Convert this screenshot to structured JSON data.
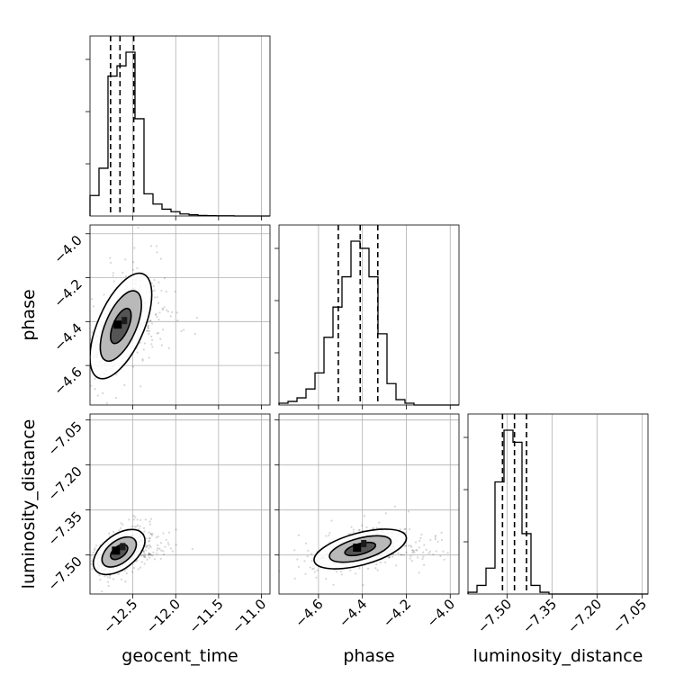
{
  "chart_data": {
    "type": "corner",
    "parameters": [
      "geocent_time",
      "phase",
      "luminosity_distance"
    ],
    "axis_labels": {
      "x": [
        "geocent_time",
        "phase",
        "luminosity_distance"
      ],
      "y": [
        "phase",
        "luminosity_distance"
      ]
    },
    "grid": true,
    "ranges": {
      "geocent_time": [
        -13.0,
        -10.9
      ],
      "phase": [
        -4.78,
        -3.96
      ],
      "luminosity_distance": [
        -7.63,
        -7.03
      ]
    },
    "ticks": {
      "geocent_time": [
        -12.5,
        -12.0,
        -11.5,
        -11.0
      ],
      "phase": [
        -4.6,
        -4.4,
        -4.2,
        -4.0
      ],
      "luminosity_distance": [
        -7.5,
        -7.35,
        -7.2,
        -7.05
      ]
    },
    "tick_labels": {
      "geocent_time": [
        "−12.5",
        "−12.0",
        "−11.5",
        "−11.0"
      ],
      "phase": [
        "−4.6",
        "−4.4",
        "−4.2",
        "−4.0"
      ],
      "luminosity_distance": [
        "−7.50",
        "−7.35",
        "−7.20",
        "−7.05"
      ]
    },
    "quantiles": {
      "geocent_time": [
        -12.76,
        -12.65,
        -12.49
      ],
      "phase": [
        -4.51,
        -4.41,
        -4.33
      ],
      "luminosity_distance": [
        -7.515,
        -7.475,
        -7.435
      ]
    },
    "histograms": {
      "geocent_time": {
        "edges": [
          -13.0,
          -12.895,
          -12.79,
          -12.685,
          -12.58,
          -12.475,
          -12.37,
          -12.265,
          -12.16,
          -12.055,
          -11.95,
          -11.845,
          -11.74,
          -11.635,
          -11.53,
          -11.425,
          -11.32,
          -11.215,
          -11.11,
          -11.005,
          -10.9
        ],
        "counts": [
          0.12,
          0.28,
          0.82,
          0.88,
          0.96,
          0.57,
          0.13,
          0.07,
          0.04,
          0.025,
          0.012,
          0.007,
          0.003,
          0.002,
          0.001,
          0.001,
          0.0,
          0.0,
          0.0,
          0.0
        ]
      },
      "phase": {
        "edges": [
          -4.78,
          -4.739,
          -4.698,
          -4.657,
          -4.616,
          -4.575,
          -4.534,
          -4.493,
          -4.452,
          -4.411,
          -4.37,
          -4.329,
          -4.288,
          -4.247,
          -4.206,
          -4.165,
          -4.124,
          -4.083,
          -4.042,
          -4.001,
          -3.96
        ],
        "counts": [
          0.01,
          0.02,
          0.04,
          0.09,
          0.18,
          0.38,
          0.55,
          0.72,
          0.92,
          0.88,
          0.72,
          0.4,
          0.12,
          0.03,
          0.01,
          0.0,
          0.0,
          0.0,
          0.0,
          0.0
        ]
      },
      "luminosity_distance": {
        "edges": [
          -7.63,
          -7.6,
          -7.57,
          -7.54,
          -7.51,
          -7.48,
          -7.45,
          -7.42,
          -7.39,
          -7.36,
          -7.33,
          -7.3,
          -7.27,
          -7.24,
          -7.21,
          -7.18,
          -7.15,
          -7.12,
          -7.09,
          -7.06,
          -7.03
        ],
        "counts": [
          0.01,
          0.05,
          0.15,
          0.65,
          0.95,
          0.88,
          0.35,
          0.05,
          0.01,
          0.0,
          0.0,
          0.0,
          0.0,
          0.0,
          0.0,
          0.0,
          0.0,
          0.0,
          0.0,
          0.0
        ]
      }
    },
    "correlations": {
      "phase_vs_geocent_time": {
        "mean": [
          -12.64,
          -4.42
        ],
        "sd": [
          0.12,
          0.08
        ],
        "rho": 0.6
      },
      "luminosity_distance_vs_geocent_time": {
        "mean": [
          -12.66,
          -7.49
        ],
        "sd": [
          0.1,
          0.025
        ],
        "rho": 0.5
      },
      "luminosity_distance_vs_phase": {
        "mean": [
          -4.41,
          -7.48
        ],
        "sd": [
          0.07,
          0.022
        ],
        "rho": 0.55
      }
    },
    "contour_levels": [
      0.393,
      0.865,
      0.989
    ]
  }
}
